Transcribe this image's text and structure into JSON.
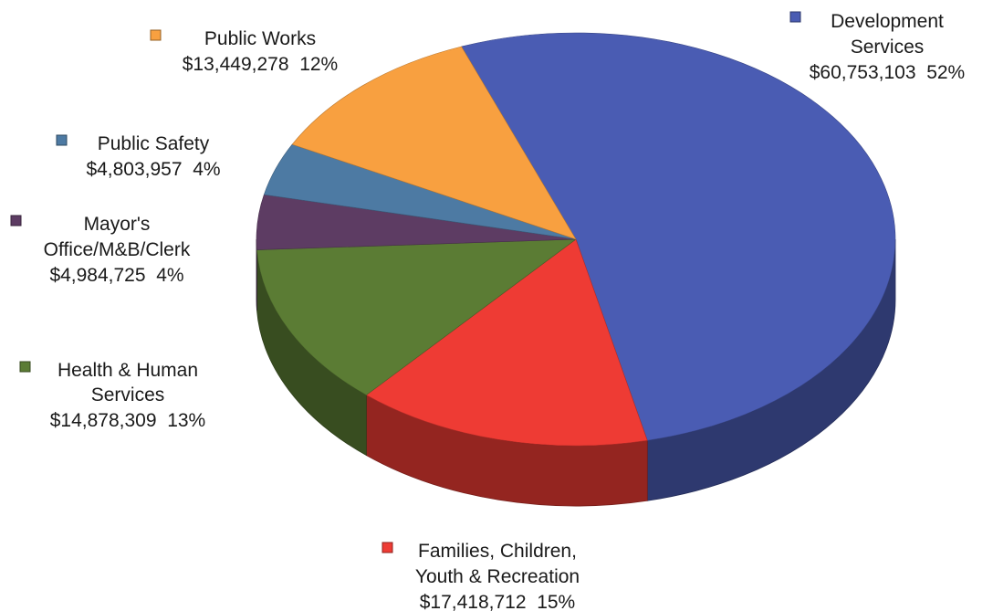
{
  "chart_data": {
    "type": "pie",
    "style": "3d",
    "title": "",
    "slices": [
      {
        "name": "Development Services",
        "label_lines": [
          "Development",
          "Services"
        ],
        "amount": "$60,753,103",
        "percent": "52%",
        "value": 60753103,
        "color": "#4a5cb3"
      },
      {
        "name": "Families, Children, Youth & Recreation",
        "label_lines": [
          "Families, Children,",
          "Youth & Recreation"
        ],
        "amount": "$17,418,712",
        "percent": "15%",
        "value": 17418712,
        "color": "#ee3b34"
      },
      {
        "name": "Health & Human Services",
        "label_lines": [
          "Health & Human",
          "Services"
        ],
        "amount": "$14,878,309",
        "percent": "13%",
        "value": 14878309,
        "color": "#5b7c34"
      },
      {
        "name": "Mayor's Office/M&B/Clerk",
        "label_lines": [
          "Mayor's",
          "Office/M&B/Clerk"
        ],
        "amount": "$4,984,725",
        "percent": "4%",
        "value": 4984725,
        "color": "#5d3c63"
      },
      {
        "name": "Public Safety",
        "label_lines": [
          "Public Safety"
        ],
        "amount": "$4,803,957",
        "percent": "4%",
        "value": 4803957,
        "color": "#4d7aa3"
      },
      {
        "name": "Public Works",
        "label_lines": [
          "Public Works"
        ],
        "amount": "$13,449,278",
        "percent": "12%",
        "value": 13449278,
        "color": "#f8a040"
      }
    ],
    "legend": "labels-around-pie"
  }
}
